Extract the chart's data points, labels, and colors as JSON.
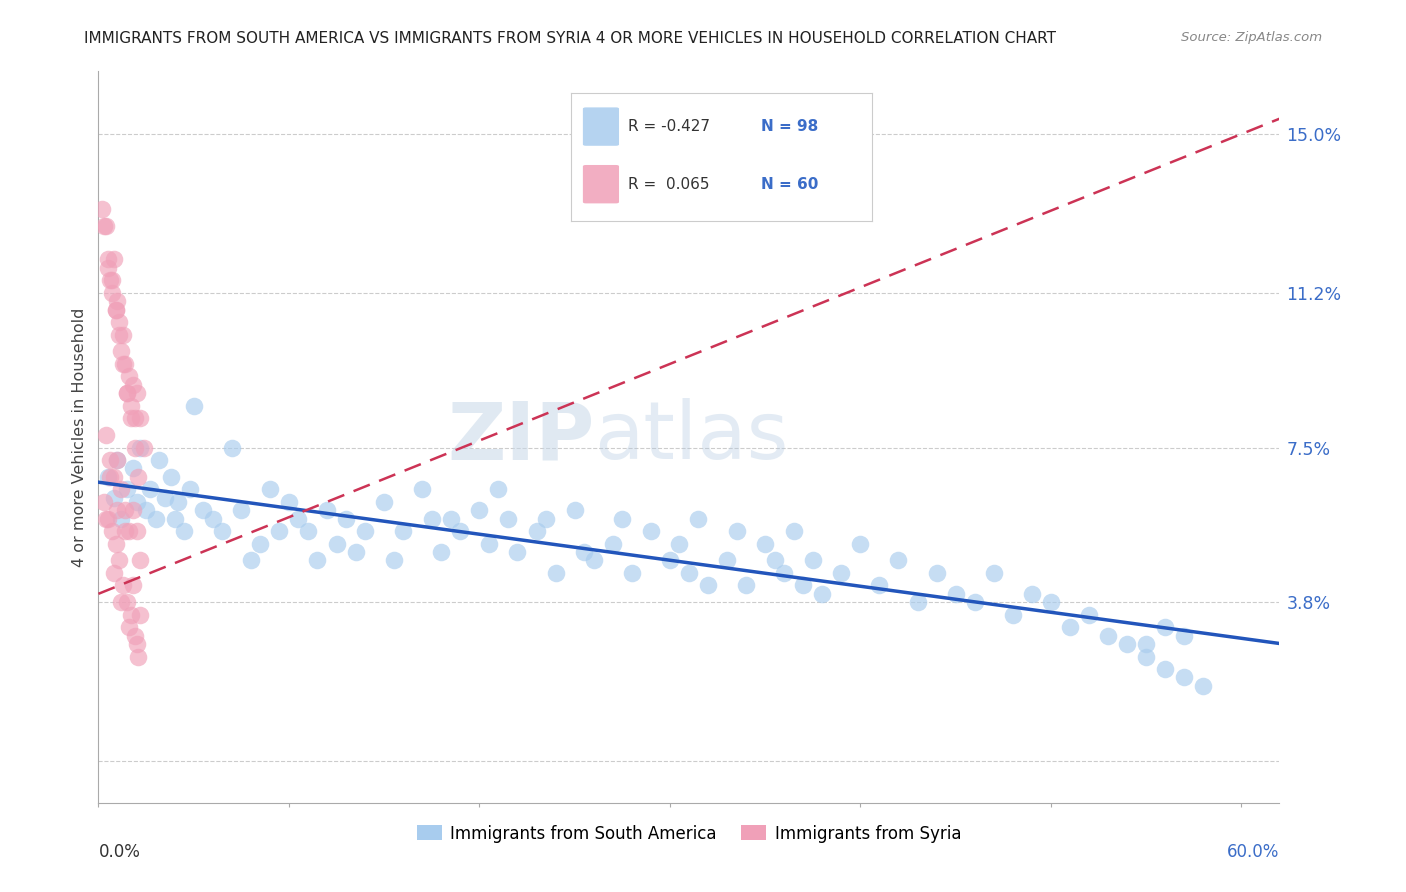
{
  "title": "IMMIGRANTS FROM SOUTH AMERICA VS IMMIGRANTS FROM SYRIA 4 OR MORE VEHICLES IN HOUSEHOLD CORRELATION CHART",
  "source": "Source: ZipAtlas.com",
  "ylabel": "4 or more Vehicles in Household",
  "yticks": [
    0.0,
    0.038,
    0.075,
    0.112,
    0.15
  ],
  "ytick_labels": [
    "",
    "3.8%",
    "7.5%",
    "11.2%",
    "15.0%"
  ],
  "xticks": [
    0.0,
    0.1,
    0.2,
    0.3,
    0.4,
    0.5,
    0.6
  ],
  "xlim": [
    0.0,
    0.62
  ],
  "ylim": [
    -0.01,
    0.165
  ],
  "color_blue": "#A8CCEE",
  "color_pink": "#F0A0B8",
  "line_color_blue": "#2255BB",
  "line_color_pink": "#CC3355",
  "watermark_zip": "ZIP",
  "watermark_atlas": "atlas",
  "legend_r1": "R = -0.427",
  "legend_n1": "N = 98",
  "legend_r2": "R =  0.065",
  "legend_n2": "N = 60",
  "south_america_x": [
    0.005,
    0.008,
    0.01,
    0.012,
    0.015,
    0.018,
    0.02,
    0.022,
    0.025,
    0.027,
    0.03,
    0.032,
    0.035,
    0.038,
    0.04,
    0.042,
    0.045,
    0.048,
    0.05,
    0.055,
    0.06,
    0.065,
    0.07,
    0.075,
    0.08,
    0.085,
    0.09,
    0.095,
    0.1,
    0.105,
    0.11,
    0.115,
    0.12,
    0.125,
    0.13,
    0.135,
    0.14,
    0.15,
    0.155,
    0.16,
    0.17,
    0.175,
    0.18,
    0.185,
    0.19,
    0.2,
    0.205,
    0.21,
    0.215,
    0.22,
    0.23,
    0.235,
    0.24,
    0.25,
    0.255,
    0.26,
    0.27,
    0.275,
    0.28,
    0.29,
    0.3,
    0.305,
    0.31,
    0.315,
    0.32,
    0.33,
    0.335,
    0.34,
    0.35,
    0.355,
    0.36,
    0.365,
    0.37,
    0.375,
    0.38,
    0.39,
    0.4,
    0.41,
    0.42,
    0.43,
    0.44,
    0.45,
    0.46,
    0.47,
    0.48,
    0.49,
    0.5,
    0.51,
    0.52,
    0.53,
    0.54,
    0.55,
    0.56,
    0.57,
    0.58,
    0.56,
    0.55,
    0.57
  ],
  "south_america_y": [
    0.068,
    0.063,
    0.072,
    0.058,
    0.065,
    0.07,
    0.062,
    0.075,
    0.06,
    0.065,
    0.058,
    0.072,
    0.063,
    0.068,
    0.058,
    0.062,
    0.055,
    0.065,
    0.085,
    0.06,
    0.058,
    0.055,
    0.075,
    0.06,
    0.048,
    0.052,
    0.065,
    0.055,
    0.062,
    0.058,
    0.055,
    0.048,
    0.06,
    0.052,
    0.058,
    0.05,
    0.055,
    0.062,
    0.048,
    0.055,
    0.065,
    0.058,
    0.05,
    0.058,
    0.055,
    0.06,
    0.052,
    0.065,
    0.058,
    0.05,
    0.055,
    0.058,
    0.045,
    0.06,
    0.05,
    0.048,
    0.052,
    0.058,
    0.045,
    0.055,
    0.048,
    0.052,
    0.045,
    0.058,
    0.042,
    0.048,
    0.055,
    0.042,
    0.052,
    0.048,
    0.045,
    0.055,
    0.042,
    0.048,
    0.04,
    0.045,
    0.052,
    0.042,
    0.048,
    0.038,
    0.045,
    0.04,
    0.038,
    0.045,
    0.035,
    0.04,
    0.038,
    0.032,
    0.035,
    0.03,
    0.028,
    0.025,
    0.022,
    0.02,
    0.018,
    0.032,
    0.028,
    0.03
  ],
  "syria_x": [
    0.002,
    0.004,
    0.005,
    0.006,
    0.007,
    0.008,
    0.009,
    0.01,
    0.011,
    0.012,
    0.013,
    0.014,
    0.015,
    0.016,
    0.017,
    0.018,
    0.019,
    0.02,
    0.022,
    0.024,
    0.003,
    0.005,
    0.007,
    0.009,
    0.011,
    0.013,
    0.015,
    0.017,
    0.019,
    0.021,
    0.004,
    0.006,
    0.008,
    0.01,
    0.012,
    0.014,
    0.016,
    0.018,
    0.02,
    0.022,
    0.003,
    0.005,
    0.007,
    0.009,
    0.011,
    0.013,
    0.015,
    0.017,
    0.019,
    0.021,
    0.006,
    0.01,
    0.014,
    0.018,
    0.022,
    0.004,
    0.008,
    0.012,
    0.016,
    0.02
  ],
  "syria_y": [
    0.132,
    0.128,
    0.118,
    0.115,
    0.112,
    0.12,
    0.108,
    0.11,
    0.105,
    0.098,
    0.102,
    0.095,
    0.088,
    0.092,
    0.085,
    0.09,
    0.082,
    0.088,
    0.082,
    0.075,
    0.128,
    0.12,
    0.115,
    0.108,
    0.102,
    0.095,
    0.088,
    0.082,
    0.075,
    0.068,
    0.078,
    0.072,
    0.068,
    0.072,
    0.065,
    0.06,
    0.055,
    0.06,
    0.055,
    0.048,
    0.062,
    0.058,
    0.055,
    0.052,
    0.048,
    0.042,
    0.038,
    0.035,
    0.03,
    0.025,
    0.068,
    0.06,
    0.055,
    0.042,
    0.035,
    0.058,
    0.045,
    0.038,
    0.032,
    0.028
  ]
}
